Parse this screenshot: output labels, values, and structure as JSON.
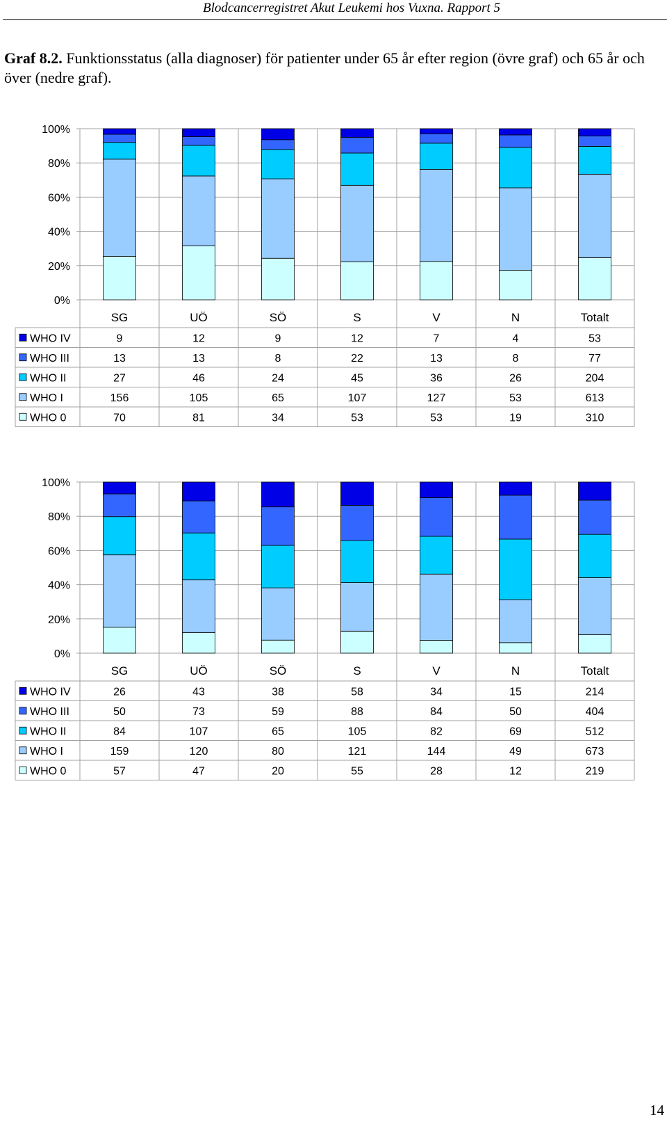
{
  "header": {
    "text": "Blodcancerregistret Akut Leukemi hos Vuxna.  Rapport 5"
  },
  "caption": {
    "number": "Graf 8.2.",
    "text": "Funktionsstatus (alla diagnoser) för patienter under 65 år efter region (övre graf) och 65 år och över (nedre graf)."
  },
  "page_number": "14",
  "chart_data": [
    {
      "type": "bar",
      "stacked": "percent",
      "title": "",
      "xlabel": "",
      "ylabel": "",
      "ylim": [
        0,
        100
      ],
      "yticks": [
        "0%",
        "20%",
        "40%",
        "60%",
        "80%",
        "100%"
      ],
      "grid": true,
      "legend": "in-table-left",
      "categories": [
        "SG",
        "UÖ",
        "SÖ",
        "S",
        "V",
        "N",
        "Totalt"
      ],
      "series": [
        {
          "name": "WHO IV",
          "color": "#0000e6",
          "values": [
            9,
            12,
            9,
            12,
            7,
            4,
            53
          ]
        },
        {
          "name": "WHO III",
          "color": "#3366ff",
          "values": [
            13,
            13,
            8,
            22,
            13,
            8,
            77
          ]
        },
        {
          "name": "WHO II",
          "color": "#00ccff",
          "values": [
            27,
            46,
            24,
            45,
            36,
            26,
            204
          ]
        },
        {
          "name": "WHO I",
          "color": "#99ccff",
          "values": [
            156,
            105,
            65,
            107,
            127,
            53,
            613
          ]
        },
        {
          "name": "WHO 0",
          "color": "#ccffff",
          "values": [
            70,
            81,
            34,
            53,
            53,
            19,
            310
          ]
        }
      ]
    },
    {
      "type": "bar",
      "stacked": "percent",
      "title": "",
      "xlabel": "",
      "ylabel": "",
      "ylim": [
        0,
        100
      ],
      "yticks": [
        "0%",
        "20%",
        "40%",
        "60%",
        "80%",
        "100%"
      ],
      "grid": true,
      "legend": "in-table-left",
      "categories": [
        "SG",
        "UÖ",
        "SÖ",
        "S",
        "V",
        "N",
        "Totalt"
      ],
      "series": [
        {
          "name": "WHO IV",
          "color": "#0000e6",
          "values": [
            26,
            43,
            38,
            58,
            34,
            15,
            214
          ]
        },
        {
          "name": "WHO III",
          "color": "#3366ff",
          "values": [
            50,
            73,
            59,
            88,
            84,
            50,
            404
          ]
        },
        {
          "name": "WHO II",
          "color": "#00ccff",
          "values": [
            84,
            107,
            65,
            105,
            82,
            69,
            512
          ]
        },
        {
          "name": "WHO I",
          "color": "#99ccff",
          "values": [
            159,
            120,
            80,
            121,
            144,
            49,
            673
          ]
        },
        {
          "name": "WHO 0",
          "color": "#ccffff",
          "values": [
            57,
            47,
            20,
            55,
            28,
            12,
            219
          ]
        }
      ]
    }
  ]
}
